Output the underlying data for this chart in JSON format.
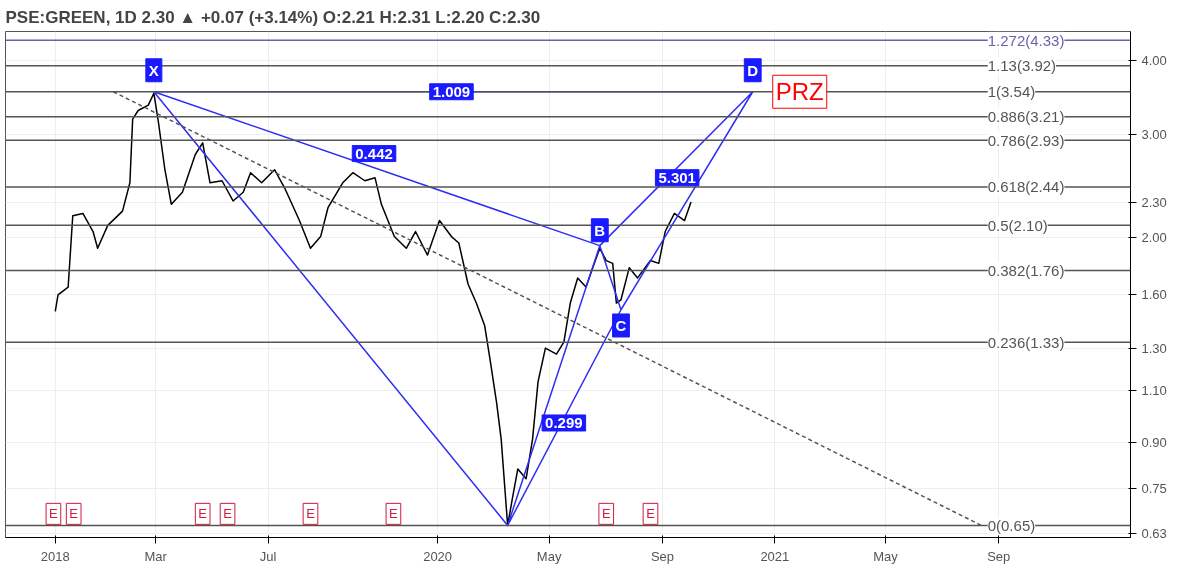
{
  "chart_data": {
    "type": "line",
    "title": "PSE:GREEN, 1D 2.30 ▲ +0.07 (+3.14%) O:2.21 H:2.31 L:2.20 C:2.30",
    "log": "y",
    "grid": true,
    "marker": "none",
    "xlim": [
      "2018-09-19",
      "2022-01-22"
    ],
    "xticks": [
      {
        "value": "2018-11-12",
        "label": "2018"
      },
      {
        "value": "2019-03-01",
        "label": "Mar"
      },
      {
        "value": "2019-07-01",
        "label": "Jul"
      },
      {
        "value": "2020-01-01",
        "label": "2020"
      },
      {
        "value": "2020-05-01",
        "label": "May"
      },
      {
        "value": "2020-09-01",
        "label": "Sep"
      },
      {
        "value": "2021-01-01",
        "label": "2021"
      },
      {
        "value": "2021-05-01",
        "label": "May"
      },
      {
        "value": "2021-09-01",
        "label": "Sep"
      }
    ],
    "ylim": [
      0.62,
      4.48
    ],
    "yticks": [
      "0.63",
      "0.75",
      "0.90",
      "1.10",
      "1.30",
      "1.60",
      "2.00",
      "2.30",
      "3.00",
      "4.00"
    ],
    "series": [
      {
        "color": "#000000",
        "line_style": "solid",
        "x": [
          "2018-11-12",
          "2018-11-15",
          "2018-11-26",
          "2018-12-01",
          "2018-12-12",
          "2018-12-23",
          "2018-12-28",
          "2019-01-08",
          "2019-01-24",
          "2019-02-01",
          "2019-02-04",
          "2019-02-10",
          "2019-02-21",
          "2019-02-27",
          "2019-03-04",
          "2019-03-11",
          "2019-03-18",
          "2019-03-30",
          "2019-04-13",
          "2019-04-21",
          "2019-04-29",
          "2019-05-12",
          "2019-05-24",
          "2019-06-04",
          "2019-06-12",
          "2019-06-24",
          "2019-07-08",
          "2019-07-19",
          "2019-08-04",
          "2019-08-16",
          "2019-08-27",
          "2019-09-04",
          "2019-09-20",
          "2019-10-01",
          "2019-10-14",
          "2019-10-25",
          "2019-11-01",
          "2019-11-15",
          "2019-11-28",
          "2019-12-08",
          "2019-12-21",
          "2020-01-03",
          "2020-01-16",
          "2020-01-24",
          "2020-02-03",
          "2020-02-12",
          "2020-02-21",
          "2020-02-27",
          "2020-03-05",
          "2020-03-10",
          "2020-03-14",
          "2020-03-17",
          "2020-03-22",
          "2020-03-28",
          "2020-04-06",
          "2020-04-13",
          "2020-04-19",
          "2020-04-27",
          "2020-05-09",
          "2020-05-17",
          "2020-05-24",
          "2020-06-01",
          "2020-06-10",
          "2020-06-19",
          "2020-06-25",
          "2020-07-02",
          "2020-07-09",
          "2020-07-13",
          "2020-07-18",
          "2020-07-27",
          "2020-08-05",
          "2020-08-19",
          "2020-08-28",
          "2020-09-04",
          "2020-09-14",
          "2020-09-25",
          "2020-10-02"
        ],
        "values": [
          1.5,
          1.6,
          1.65,
          2.18,
          2.2,
          2.05,
          1.92,
          2.1,
          2.22,
          2.48,
          3.18,
          3.29,
          3.36,
          3.52,
          3.14,
          2.61,
          2.28,
          2.39,
          2.77,
          2.9,
          2.48,
          2.5,
          2.31,
          2.39,
          2.58,
          2.48,
          2.61,
          2.43,
          2.14,
          1.92,
          2.01,
          2.25,
          2.48,
          2.58,
          2.5,
          2.53,
          2.28,
          2.01,
          1.92,
          2.05,
          1.87,
          2.14,
          2.01,
          1.96,
          1.67,
          1.55,
          1.42,
          1.24,
          1.05,
          0.91,
          0.75,
          0.65,
          0.72,
          0.81,
          0.78,
          0.91,
          1.14,
          1.3,
          1.27,
          1.33,
          1.55,
          1.71,
          1.65,
          1.81,
          1.92,
          1.83,
          1.81,
          1.55,
          1.57,
          1.78,
          1.71,
          1.83,
          1.81,
          2.05,
          2.2,
          2.14,
          2.3
        ]
      },
      {
        "color": "#2e2ef5",
        "line_style": "solid",
        "x": [
          "2019-02-27",
          "2020-03-17",
          "2020-06-25",
          "2019-02-27",
          "2020-12-08",
          "2020-06-25",
          "2020-07-18",
          "2020-12-08",
          "2020-07-18",
          "2020-03-17"
        ],
        "values": [
          3.54,
          0.65,
          1.94,
          3.54,
          3.54,
          1.94,
          1.51,
          3.54,
          1.51,
          0.65
        ]
      },
      {
        "color": "#555555",
        "line_style": "dashed",
        "x": [
          "2019-01-14",
          "2021-08-13"
        ],
        "values": [
          3.54,
          0.65
        ]
      }
    ],
    "ref_lines": [
      {
        "axis": "y",
        "value": 4.33,
        "label": "1.272(4.33)",
        "color": "#6a5fb0"
      },
      {
        "axis": "y",
        "value": 3.92,
        "label": "1.13(3.92)",
        "color": "#555555"
      },
      {
        "axis": "y",
        "value": 3.54,
        "label": "1(3.54)",
        "color": "#555555"
      },
      {
        "axis": "y",
        "value": 3.21,
        "label": "0.886(3.21)",
        "color": "#555555"
      },
      {
        "axis": "y",
        "value": 2.93,
        "label": "0.786(2.93)",
        "color": "#555555"
      },
      {
        "axis": "y",
        "value": 2.44,
        "label": "0.618(2.44)",
        "color": "#555555"
      },
      {
        "axis": "y",
        "value": 2.1,
        "label": "0.5(2.10)",
        "color": "#555555"
      },
      {
        "axis": "y",
        "value": 1.76,
        "label": "0.382(1.76)",
        "color": "#555555"
      },
      {
        "axis": "y",
        "value": 1.33,
        "label": "0.236(1.33)",
        "color": "#555555"
      },
      {
        "axis": "y",
        "value": 0.65,
        "label": "0(0.65)",
        "color": "#555555"
      }
    ],
    "annotations": [
      {
        "text": "X",
        "x": "2019-02-27",
        "y": 3.85
      },
      {
        "text": "B",
        "x": "2020-06-25",
        "y": 2.06
      },
      {
        "text": "C",
        "x": "2020-07-18",
        "y": 1.42
      },
      {
        "text": "D",
        "x": "2020-12-08",
        "y": 3.85
      },
      {
        "text": "1.009",
        "x": "2020-01-16",
        "y": 3.54
      },
      {
        "text": "0.442",
        "x": "2019-10-24",
        "y": 2.78
      },
      {
        "text": "5.301",
        "x": "2020-09-17",
        "y": 2.53
      },
      {
        "text": "0.299",
        "x": "2020-05-17",
        "y": 0.97
      },
      {
        "text": "PRZ",
        "x": "2021-01-28",
        "y": 3.54
      },
      {
        "text": "E",
        "x": "2018-11-10",
        "y": 0.68
      },
      {
        "text": "E",
        "x": "2018-12-02",
        "y": 0.68
      },
      {
        "text": "E",
        "x": "2019-04-21",
        "y": 0.68
      },
      {
        "text": "E",
        "x": "2019-05-18",
        "y": 0.68
      },
      {
        "text": "E",
        "x": "2019-08-16",
        "y": 0.68
      },
      {
        "text": "E",
        "x": "2019-11-14",
        "y": 0.68
      },
      {
        "text": "E",
        "x": "2020-07-02",
        "y": 0.68
      },
      {
        "text": "E",
        "x": "2020-08-19",
        "y": 0.68
      }
    ]
  }
}
